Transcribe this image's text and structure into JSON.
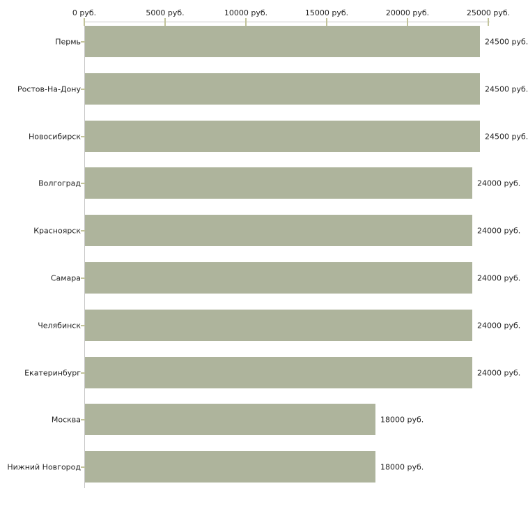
{
  "chart_data": {
    "type": "bar",
    "orientation": "horizontal",
    "title": "",
    "xlabel": "",
    "ylabel": "",
    "categories": [
      "Пермь",
      "Ростов-На-Дону",
      "Новосибирск",
      "Волгоград",
      "Красноярск",
      "Самара",
      "Челябинск",
      "Екатеринбург",
      "Москва",
      "Нижний Новгород"
    ],
    "values": [
      24500,
      24500,
      24500,
      24000,
      24000,
      24000,
      24000,
      24000,
      18000,
      18000
    ],
    "value_labels": [
      "24500 руб.",
      "24500 руб.",
      "24500 руб.",
      "24000 руб.",
      "24000 руб.",
      "24000 руб.",
      "24000 руб.",
      "24000 руб.",
      "18000 руб.",
      "18000 руб."
    ],
    "x_ticks": [
      "0 руб.",
      "5000 руб.",
      "10000 руб.",
      "15000 руб.",
      "20000 руб.",
      "25000 руб."
    ],
    "x_tick_values": [
      0,
      5000,
      10000,
      15000,
      20000,
      25000
    ],
    "xlim": [
      0,
      25000
    ],
    "grid": false,
    "legend": null,
    "axis_position": "top",
    "colors": {
      "bar": "#aeb49c",
      "axis_line": "#c6c6c6",
      "tick_mark": "#c2c39a",
      "text": "#222222",
      "background": "#ffffff"
    }
  }
}
